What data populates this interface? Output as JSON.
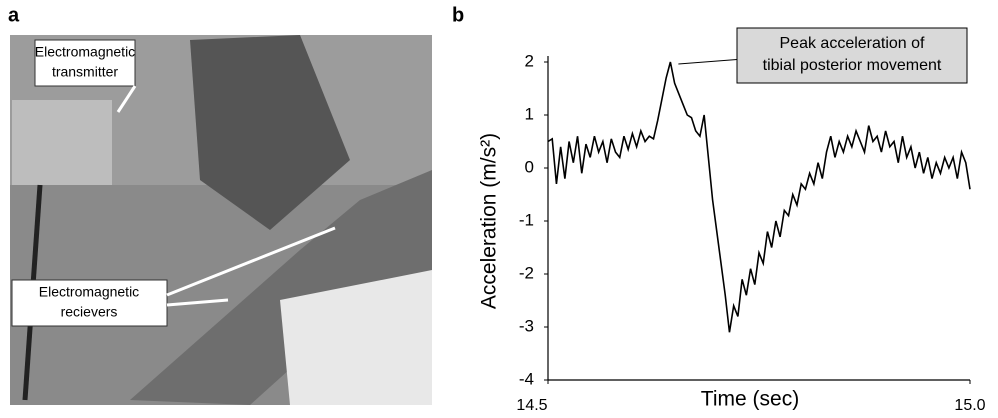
{
  "panel_labels": [
    "a",
    "b"
  ],
  "photo": {
    "transmitter_label": [
      "Electromagnetic",
      "transmitter"
    ],
    "receivers_label": [
      "Electromagnetic",
      "recievers"
    ]
  },
  "chart_data": {
    "type": "line",
    "xlabel": "Time (sec)",
    "ylabel": "Acceleration (m/s²)",
    "color": "#000000",
    "x": [
      14.5,
      14.505,
      14.51,
      14.515,
      14.52,
      14.525,
      14.53,
      14.535,
      14.54,
      14.545,
      14.55,
      14.555,
      14.56,
      14.565,
      14.57,
      14.575,
      14.58,
      14.585,
      14.59,
      14.595,
      14.6,
      14.605,
      14.61,
      14.615,
      14.62,
      14.625,
      14.63,
      14.635,
      14.64,
      14.645,
      14.65,
      14.655,
      14.66,
      14.665,
      14.67,
      14.675,
      14.68,
      14.685,
      14.69,
      14.695,
      14.7,
      14.705,
      14.71,
      14.715,
      14.72,
      14.725,
      14.73,
      14.735,
      14.74,
      14.745,
      14.75,
      14.755,
      14.76,
      14.765,
      14.77,
      14.775,
      14.78,
      14.785,
      14.79,
      14.795,
      14.8,
      14.805,
      14.81,
      14.815,
      14.82,
      14.825,
      14.83,
      14.835,
      14.84,
      14.845,
      14.85,
      14.855,
      14.86,
      14.865,
      14.87,
      14.875,
      14.88,
      14.885,
      14.89,
      14.895,
      14.9,
      14.905,
      14.91,
      14.915,
      14.92,
      14.925,
      14.93,
      14.935,
      14.94,
      14.945,
      14.95,
      14.955,
      14.96,
      14.965,
      14.97,
      14.975,
      14.98,
      14.985,
      14.99,
      14.995,
      15.0
    ],
    "values": [
      0.5,
      0.55,
      -0.3,
      0.4,
      -0.2,
      0.5,
      0.1,
      0.6,
      -0.1,
      0.45,
      0.2,
      0.6,
      0.3,
      0.5,
      0.1,
      0.55,
      0.3,
      0.2,
      0.6,
      0.35,
      0.65,
      0.4,
      0.7,
      0.5,
      0.6,
      0.55,
      0.9,
      1.3,
      1.7,
      2.0,
      1.6,
      1.4,
      1.2,
      1.0,
      0.95,
      0.7,
      0.6,
      1.0,
      0.2,
      -0.6,
      -1.2,
      -1.8,
      -2.4,
      -3.1,
      -2.6,
      -2.8,
      -2.1,
      -2.4,
      -1.9,
      -2.2,
      -1.6,
      -1.8,
      -1.2,
      -1.5,
      -1.0,
      -1.3,
      -0.8,
      -0.9,
      -0.5,
      -0.7,
      -0.3,
      -0.4,
      -0.1,
      -0.3,
      0.1,
      -0.2,
      0.3,
      0.6,
      0.2,
      0.5,
      0.3,
      0.6,
      0.4,
      0.7,
      0.5,
      0.3,
      0.8,
      0.5,
      0.6,
      0.3,
      0.7,
      0.4,
      0.5,
      0.1,
      0.6,
      0.2,
      0.4,
      0.0,
      0.3,
      -0.1,
      0.2,
      -0.2,
      0.1,
      -0.1,
      0.2,
      0.0,
      0.2,
      -0.2,
      0.3,
      0.1,
      -0.4
    ],
    "xlim": [
      14.5,
      15.0
    ],
    "ylim": [
      -4,
      2
    ],
    "xticks": [
      14.5,
      {
        "value": 15.0,
        "label": "15.0"
      }
    ],
    "yticks": [
      -4,
      -3,
      -2,
      -1,
      0,
      1,
      2
    ],
    "annotation": [
      "Peak acceleration of",
      "tibial posterior movement"
    ]
  }
}
